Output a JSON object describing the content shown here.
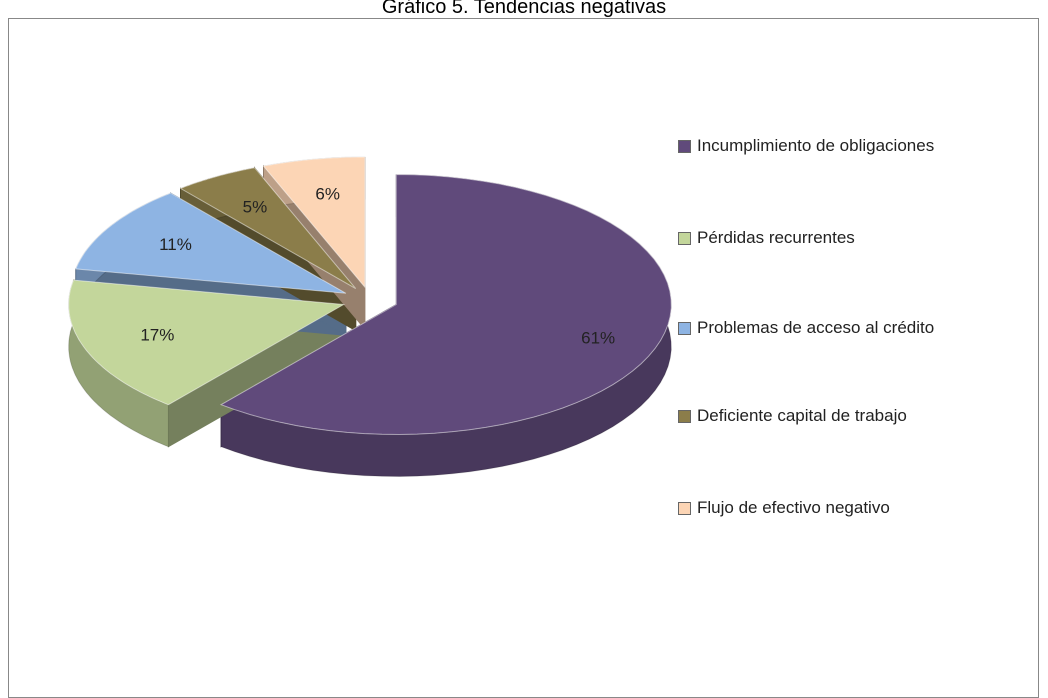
{
  "chart_data": {
    "type": "pie",
    "title": "Gráfico 5. Tendencias negativas",
    "series": [
      {
        "name": "Incumplimiento de obligaciones",
        "color": "#604a7b",
        "values": [
          61
        ],
        "value_labels": [
          "61%"
        ]
      },
      {
        "name": "Pérdidas recurrentes",
        "color": "#c3d69b",
        "values": [
          17
        ],
        "value_labels": [
          "17%"
        ]
      },
      {
        "name": "Problemas de acceso al crédito",
        "color": "#8eb4e3",
        "values": [
          11
        ],
        "value_labels": [
          "11%"
        ]
      },
      {
        "name": "Deficiente capital de trabajo",
        "color": "#8b7d4a",
        "values": [
          5
        ],
        "value_labels": [
          "5%"
        ]
      },
      {
        "name": "Flujo de efectivo negativo",
        "color": "#fcd5b5",
        "values": [
          6
        ],
        "value_labels": [
          "6%"
        ]
      }
    ],
    "legend": "right"
  }
}
